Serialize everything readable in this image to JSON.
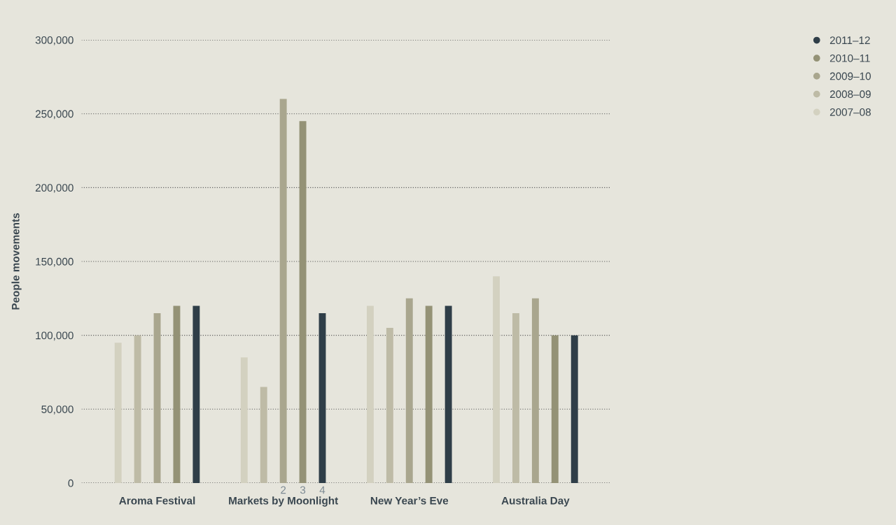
{
  "chart_data": {
    "type": "bar",
    "ylabel": "People movements",
    "categories": [
      "Aroma Festival",
      "Markets by Moonlight",
      "New Year’s Eve",
      "Australia Day"
    ],
    "series": [
      {
        "name": "2007–08",
        "color": "#d3d1c0",
        "values": [
          95000,
          85000,
          120000,
          140000
        ]
      },
      {
        "name": "2008–09",
        "color": "#bebba6",
        "values": [
          100000,
          65000,
          105000,
          115000
        ]
      },
      {
        "name": "2009–10",
        "color": "#a9a68e",
        "values": [
          115000,
          260000,
          125000,
          125000
        ]
      },
      {
        "name": "2010–11",
        "color": "#949276",
        "values": [
          120000,
          245000,
          120000,
          100000
        ]
      },
      {
        "name": "2011–12",
        "color": "#2f3e48",
        "values": [
          120000,
          115000,
          120000,
          100000
        ]
      }
    ],
    "ylim": [
      0,
      300000
    ],
    "yticks": [
      0,
      {
        "value": 50000,
        "label": "50,000"
      },
      {
        "value": 100000,
        "label": "100,000"
      },
      {
        "value": 150000,
        "label": "150,000"
      },
      {
        "value": 200000,
        "label": "200,000"
      },
      {
        "value": 250000,
        "label": "250,000"
      },
      {
        "value": 300000,
        "label": "300,000"
      }
    ],
    "annotations": [
      "2",
      "3",
      "4"
    ],
    "grid": "y",
    "legend": "top right"
  }
}
